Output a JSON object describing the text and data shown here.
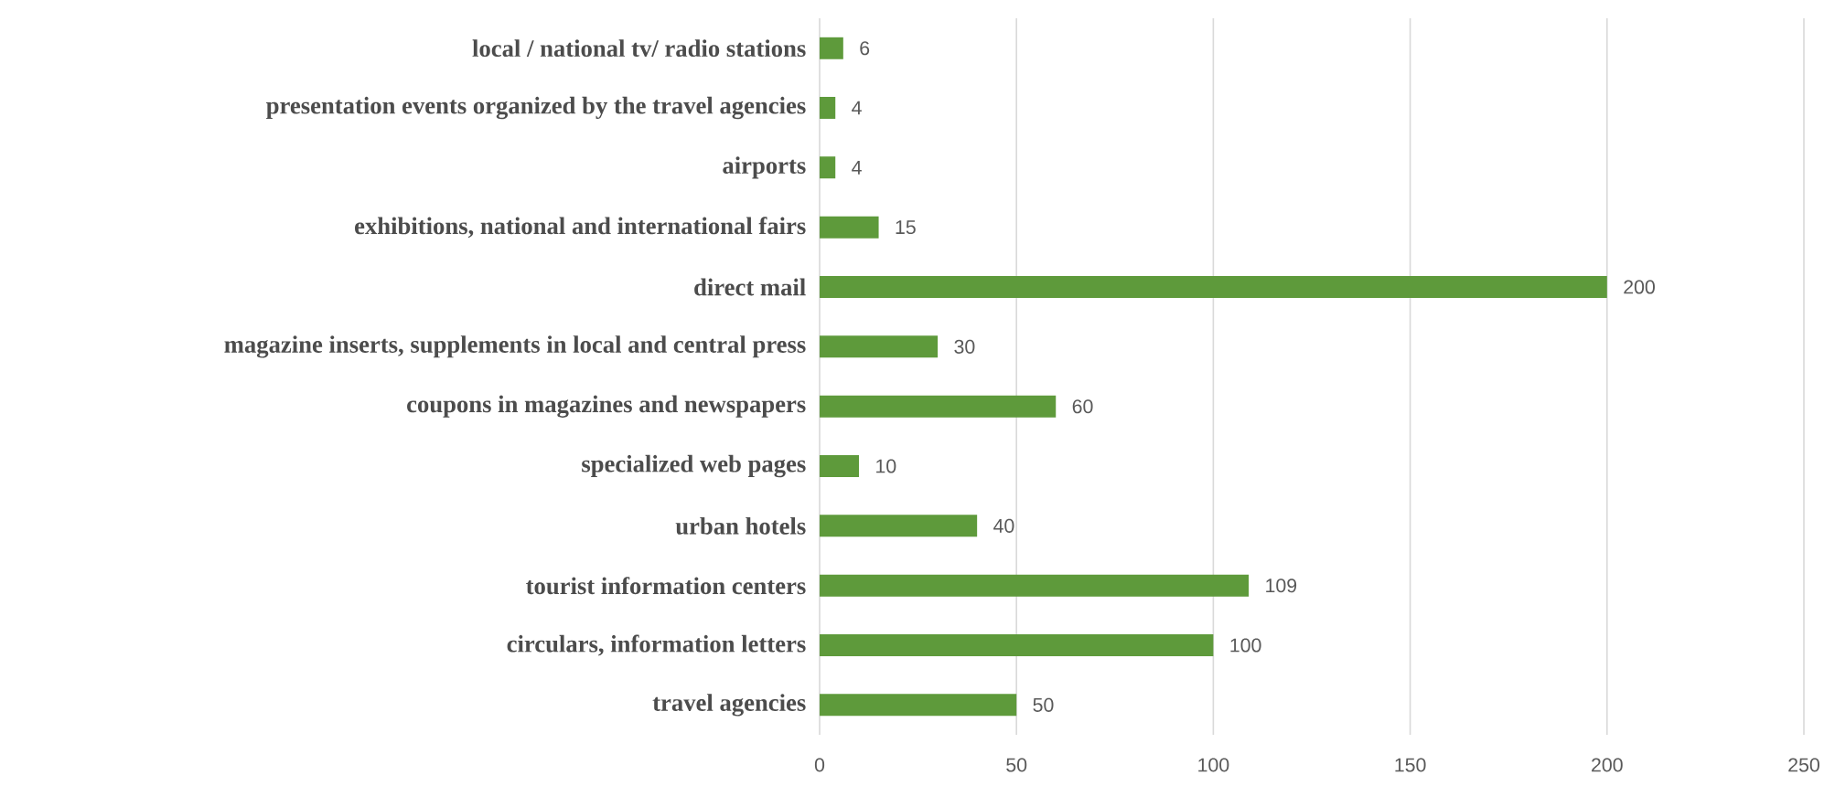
{
  "chart_data": {
    "type": "bar",
    "orientation": "horizontal",
    "categories": [
      "local / national tv/ radio stations",
      "presentation events organized by the travel agencies",
      "airports",
      "exhibitions, national and international fairs",
      "direct mail",
      "magazine inserts, supplements in local and central press",
      "coupons in magazines and newspapers",
      "specialized web pages",
      "urban hotels",
      "tourist information centers",
      "circulars, information letters",
      "travel agencies"
    ],
    "values": [
      6,
      4,
      4,
      15,
      200,
      30,
      60,
      10,
      40,
      109,
      100,
      50
    ],
    "color": "#5e9a3b",
    "xlim": [
      0,
      250
    ],
    "xticks": [
      0,
      50,
      100,
      150,
      200,
      250
    ],
    "grid": "x",
    "data_labels": true
  }
}
